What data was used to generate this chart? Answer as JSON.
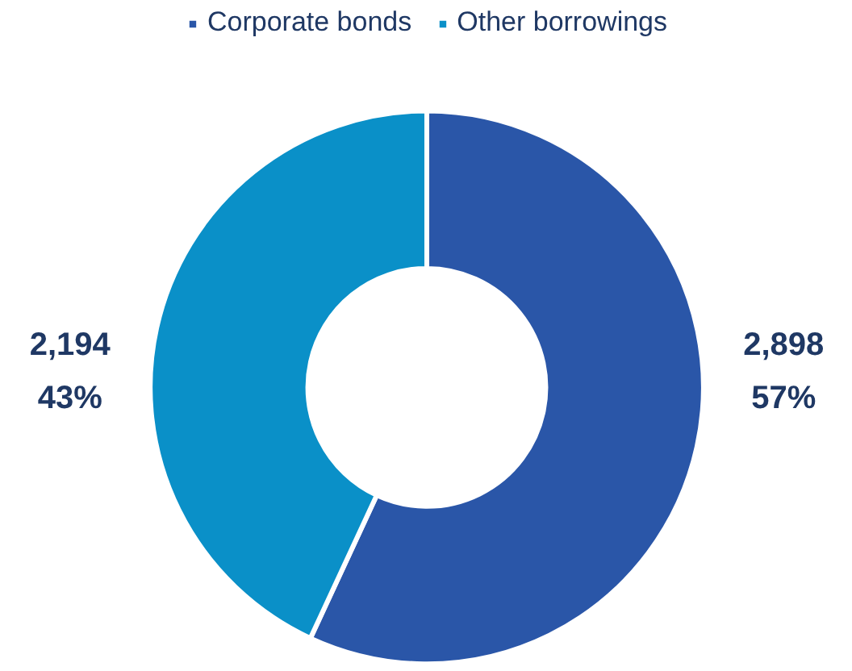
{
  "chart_data": {
    "type": "donut",
    "categories": [
      "Corporate bonds",
      "Other borrowings"
    ],
    "values": [
      2898,
      2194
    ],
    "colors": [
      "#2a56a8",
      "#0a90c8"
    ],
    "value_labels": [
      "2,898\n57%",
      "2,194\n43%"
    ],
    "legend": "top"
  }
}
